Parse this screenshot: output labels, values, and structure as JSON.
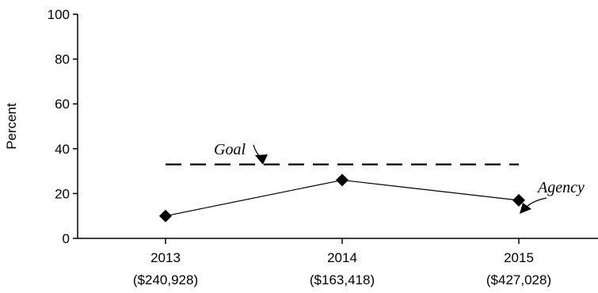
{
  "chart_data": {
    "type": "line",
    "ylabel": "Percent",
    "ylim": [
      0,
      100
    ],
    "yticks": [
      0,
      20,
      40,
      60,
      80,
      100
    ],
    "grid": false,
    "categories": [
      {
        "year": "2013",
        "amount": "($240,928)"
      },
      {
        "year": "2014",
        "amount": "($163,418)"
      },
      {
        "year": "2015",
        "amount": "($427,028)"
      }
    ],
    "series": [
      {
        "name": "Agency",
        "values": [
          10,
          26,
          17
        ],
        "marker": "diamond",
        "style": "solid",
        "color": "#000000"
      }
    ],
    "reference_lines": [
      {
        "name": "Goal",
        "value": 33,
        "style": "dashed",
        "color": "#000000"
      }
    ],
    "annotations": [
      {
        "text": "Goal",
        "target": "goal-line"
      },
      {
        "text": "Agency",
        "target": "agency-series"
      }
    ]
  }
}
